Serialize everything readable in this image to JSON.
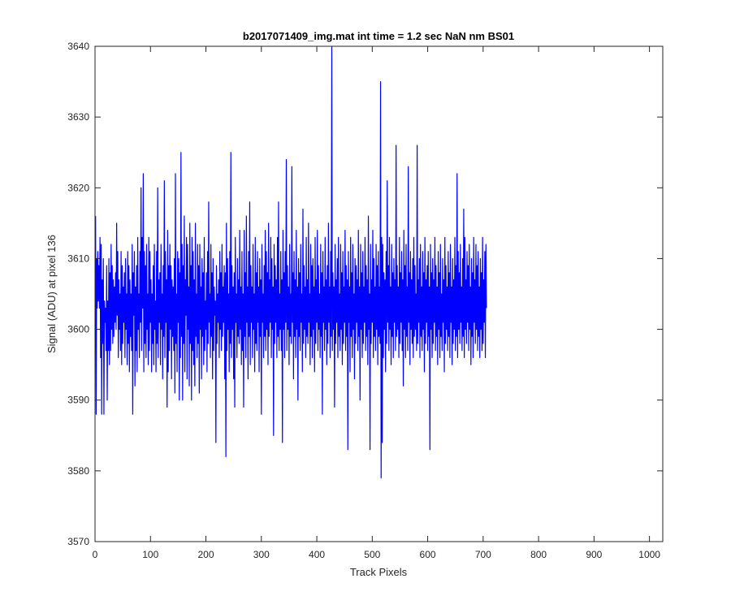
{
  "chart_data": {
    "type": "line",
    "title": "b2017071409_img.mat int time = 1.2 sec  NaN nm BS01",
    "xlabel": "Track Pixels",
    "ylabel": "Signal (ADU) at pixel 136",
    "xlim": [
      0,
      1024
    ],
    "ylim": [
      3570,
      3640
    ],
    "xticks": [
      0,
      100,
      200,
      300,
      400,
      500,
      600,
      700,
      800,
      900,
      1000
    ],
    "yticks": [
      3570,
      3580,
      3590,
      3600,
      3610,
      3620,
      3630,
      3640
    ],
    "grid": false,
    "legend": "none",
    "series": [
      {
        "color": "#0000ff",
        "x_start": 1,
        "x_step": 1,
        "values": [
          3616,
          3588,
          3610,
          3603,
          3611,
          3604,
          3609,
          3603,
          3613,
          3596,
          3612,
          3588,
          3607,
          3598,
          3610,
          3588,
          3604,
          3601,
          3603,
          3597,
          3609,
          3590,
          3604,
          3597,
          3610,
          3595,
          3608,
          3597,
          3612,
          3600,
          3609,
          3598,
          3607,
          3599,
          3606,
          3601,
          3608,
          3600,
          3615,
          3602,
          3611,
          3596,
          3607,
          3600,
          3605,
          3597,
          3611,
          3595,
          3609,
          3598,
          3606,
          3601,
          3608,
          3596,
          3610,
          3600,
          3605,
          3595,
          3611,
          3598,
          3609,
          3594,
          3607,
          3599,
          3605,
          3597,
          3612,
          3588,
          3608,
          3602,
          3611,
          3592,
          3606,
          3597,
          3609,
          3594,
          3613,
          3600,
          3605,
          3596,
          3611,
          3601,
          3620,
          3597,
          3613,
          3603,
          3622,
          3594,
          3611,
          3598,
          3609,
          3596,
          3612,
          3600,
          3605,
          3595,
          3613,
          3597,
          3611,
          3601,
          3607,
          3594,
          3605,
          3598,
          3609,
          3595,
          3612,
          3600,
          3604,
          3594,
          3611,
          3598,
          3620,
          3596,
          3607,
          3601,
          3608,
          3595,
          3612,
          3600,
          3605,
          3593,
          3609,
          3599,
          3621,
          3596,
          3611,
          3601,
          3607,
          3589,
          3614,
          3594,
          3609,
          3597,
          3612,
          3600,
          3609,
          3593,
          3607,
          3599,
          3606,
          3597,
          3610,
          3591,
          3622,
          3598,
          3605,
          3594,
          3611,
          3601,
          3610,
          3590,
          3608,
          3596,
          3625,
          3599,
          3612,
          3590,
          3609,
          3598,
          3616,
          3594,
          3607,
          3602,
          3613,
          3593,
          3612,
          3600,
          3606,
          3592,
          3615,
          3598,
          3609,
          3590,
          3613,
          3597,
          3611,
          3595,
          3607,
          3592,
          3615,
          3599,
          3605,
          3596,
          3612,
          3598,
          3609,
          3591,
          3612,
          3600,
          3606,
          3593,
          3610,
          3599,
          3608,
          3595,
          3613,
          3597,
          3604,
          3600,
          3608,
          3594,
          3611,
          3598,
          3618,
          3601,
          3605,
          3596,
          3612,
          3599,
          3608,
          3593,
          3610,
          3597,
          3606,
          3602,
          3604,
          3584,
          3609,
          3598,
          3605,
          3601,
          3607,
          3596,
          3611,
          3600,
          3608,
          3597,
          3612,
          3599,
          3606,
          3601,
          3609,
          3593,
          3608,
          3582,
          3615,
          3597,
          3610,
          3600,
          3605,
          3594,
          3611,
          3598,
          3625,
          3596,
          3609,
          3600,
          3606,
          3593,
          3608,
          3589,
          3613,
          3601,
          3605,
          3596,
          3610,
          3599,
          3607,
          3598,
          3614,
          3600,
          3606,
          3595,
          3611,
          3597,
          3605,
          3589,
          3614,
          3599,
          3608,
          3596,
          3616,
          3601,
          3606,
          3593,
          3611,
          3599,
          3618,
          3595,
          3609,
          3601,
          3606,
          3596,
          3612,
          3600,
          3605,
          3594,
          3613,
          3598,
          3608,
          3597,
          3611,
          3601,
          3606,
          3594,
          3610,
          3599,
          3607,
          3588,
          3612,
          3601,
          3605,
          3596,
          3609,
          3599,
          3614,
          3597,
          3611,
          3600,
          3608,
          3595,
          3615,
          3599,
          3607,
          3601,
          3613,
          3596,
          3610,
          3600,
          3606,
          3585,
          3612,
          3598,
          3609,
          3601,
          3607,
          3596,
          3613,
          3599,
          3618,
          3597,
          3605,
          3600,
          3611,
          3597,
          3607,
          3584,
          3614,
          3600,
          3608,
          3596,
          3611,
          3601,
          3624,
          3597,
          3609,
          3600,
          3606,
          3595,
          3612,
          3599,
          3605,
          3598,
          3623,
          3601,
          3608,
          3593,
          3611,
          3599,
          3607,
          3596,
          3614,
          3600,
          3606,
          3590,
          3610,
          3599,
          3608,
          3597,
          3612,
          3601,
          3605,
          3594,
          3617,
          3598,
          3609,
          3600,
          3606,
          3596,
          3613,
          3599,
          3607,
          3598,
          3615,
          3601,
          3605,
          3595,
          3612,
          3599,
          3609,
          3596,
          3610,
          3600,
          3606,
          3594,
          3613,
          3598,
          3607,
          3601,
          3614,
          3597,
          3609,
          3600,
          3605,
          3596,
          3612,
          3599,
          3608,
          3588,
          3611,
          3601,
          3606,
          3597,
          3613,
          3600,
          3607,
          3595,
          3609,
          3598,
          3615,
          3601,
          3606,
          3596,
          3611,
          3599,
          3640,
          3597,
          3608,
          3600,
          3606,
          3589,
          3612,
          3598,
          3607,
          3601,
          3610,
          3596,
          3613,
          3599,
          3605,
          3597,
          3612,
          3600,
          3608,
          3595,
          3611,
          3598,
          3606,
          3601,
          3614,
          3597,
          3609,
          3599,
          3607,
          3583,
          3611,
          3601,
          3606,
          3594,
          3613,
          3599,
          3608,
          3596,
          3612,
          3600,
          3605,
          3593,
          3610,
          3598,
          3609,
          3601,
          3607,
          3597,
          3614,
          3599,
          3606,
          3590,
          3612,
          3600,
          3608,
          3596,
          3611,
          3598,
          3606,
          3601,
          3613,
          3597,
          3609,
          3599,
          3607,
          3595,
          3616,
          3600,
          3605,
          3583,
          3612,
          3598,
          3607,
          3601,
          3614,
          3596,
          3610,
          3599,
          3606,
          3597,
          3612,
          3600,
          3609,
          3595,
          3611,
          3599,
          3606,
          3598,
          3635,
          3579,
          3613,
          3584,
          3612,
          3596,
          3608,
          3600,
          3607,
          3594,
          3611,
          3598,
          3621,
          3601,
          3609,
          3597,
          3613,
          3600,
          3606,
          3595,
          3612,
          3599,
          3608,
          3596,
          3610,
          3601,
          3607,
          3597,
          3626,
          3599,
          3609,
          3600,
          3606,
          3596,
          3613,
          3598,
          3608,
          3601,
          3611,
          3597,
          3607,
          3592,
          3614,
          3600,
          3609,
          3596,
          3612,
          3599,
          3606,
          3597,
          3623,
          3601,
          3608,
          3595,
          3611,
          3600,
          3607,
          3598,
          3610,
          3596,
          3613,
          3599,
          3609,
          3600,
          3605,
          3597,
          3626,
          3598,
          3607,
          3601,
          3610,
          3596,
          3612,
          3599,
          3606,
          3597,
          3611,
          3600,
          3608,
          3594,
          3613,
          3598,
          3607,
          3601,
          3609,
          3597,
          3611,
          3599,
          3606,
          3583,
          3612,
          3600,
          3608,
          3596,
          3610,
          3598,
          3607,
          3601,
          3613,
          3597,
          3609,
          3599,
          3606,
          3595,
          3611,
          3600,
          3608,
          3596,
          3612,
          3599,
          3605,
          3597,
          3610,
          3601,
          3607,
          3594,
          3613,
          3598,
          3609,
          3600,
          3606,
          3597,
          3611,
          3599,
          3608,
          3596,
          3612,
          3601,
          3606,
          3595,
          3610,
          3598,
          3607,
          3600,
          3613,
          3597,
          3609,
          3599,
          3622,
          3596,
          3611,
          3600,
          3608,
          3598,
          3612,
          3601,
          3606,
          3597,
          3610,
          3599,
          3617,
          3596,
          3613,
          3600,
          3607,
          3598,
          3611,
          3601,
          3609,
          3597,
          3612,
          3600,
          3606,
          3595,
          3610,
          3599,
          3608,
          3596,
          3613,
          3601,
          3607,
          3598,
          3612,
          3600,
          3609,
          3597,
          3611,
          3599,
          3606,
          3596,
          3610,
          3600,
          3608,
          3597,
          3613,
          3598,
          3607,
          3601,
          3611,
          3596,
          3612,
          3603
        ]
      }
    ]
  }
}
